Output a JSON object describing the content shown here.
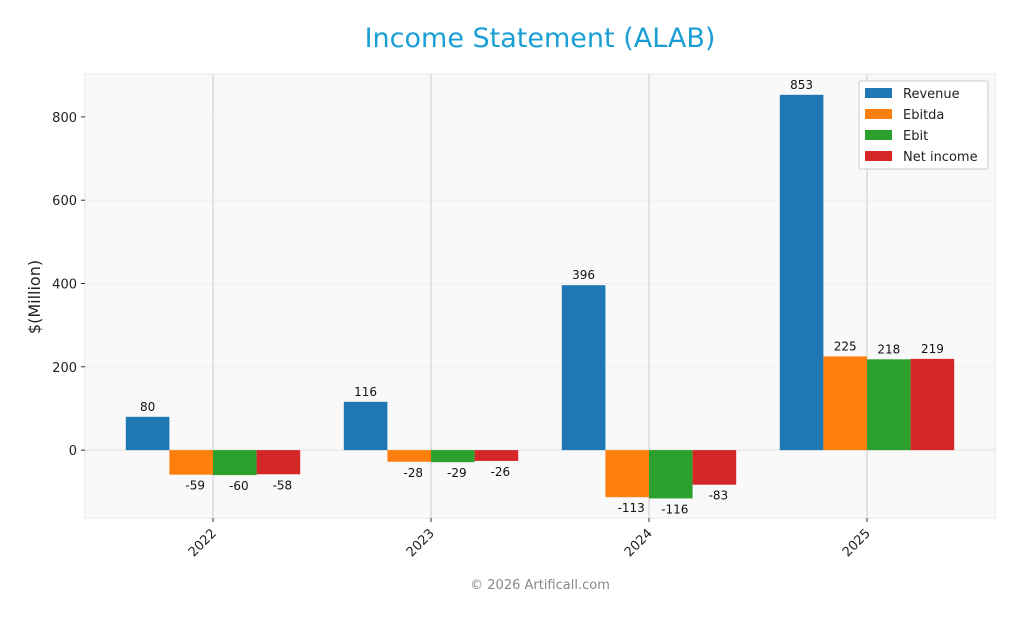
{
  "chart_data": {
    "type": "bar",
    "title": "Income Statement (ALAB)",
    "xlabel": "",
    "ylabel": "$(Million)",
    "categories": [
      "2022",
      "2023",
      "2024",
      "2025"
    ],
    "series": [
      {
        "name": "Revenue",
        "color": "#1f77b4",
        "values": [
          80,
          116,
          396,
          853
        ]
      },
      {
        "name": "Ebitda",
        "color": "#ff7f0e",
        "values": [
          -59,
          -28,
          -113,
          225
        ]
      },
      {
        "name": "Ebit",
        "color": "#2ca02c",
        "values": [
          -60,
          -29,
          -116,
          218
        ]
      },
      {
        "name": "Net income",
        "color": "#d62728",
        "values": [
          -58,
          -26,
          -83,
          219
        ]
      }
    ],
    "ylim": [
      -163,
      903
    ],
    "yticks": [
      0,
      200,
      400,
      600,
      800
    ],
    "grid": true,
    "legend": "top-right"
  },
  "footer": {
    "copyright": "© 2026 Artificall.com"
  },
  "colors": {
    "title": "#1a9fd4"
  }
}
